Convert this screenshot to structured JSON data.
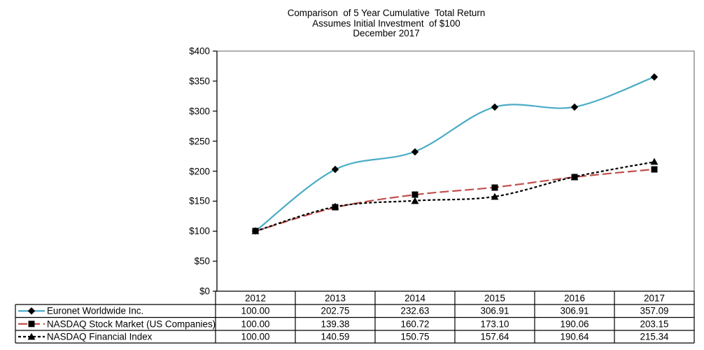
{
  "title": {
    "line1": "Comparison  of 5 Year Cumulative  Total Return",
    "line2": "Assumes Initial Investment  of $100",
    "line3": "December 2017"
  },
  "chart_data": {
    "type": "line",
    "categories": [
      "2012",
      "2013",
      "2014",
      "2015",
      "2016",
      "2017"
    ],
    "series": [
      {
        "name": "Euronet Worldwide Inc.",
        "values": [
          100.0,
          202.75,
          232.63,
          306.91,
          306.91,
          357.09
        ],
        "color": "#4BACC6",
        "dash": "",
        "marker": "diamond"
      },
      {
        "name": "NASDAQ Stock Market (US Companies)",
        "values": [
          100.0,
          139.38,
          160.72,
          173.1,
          190.06,
          203.15
        ],
        "color": "#C0504D",
        "dash": "13 5",
        "marker": "square"
      },
      {
        "name": "NASDAQ Financial Index",
        "values": [
          100.0,
          140.59,
          150.75,
          157.64,
          190.64,
          215.34
        ],
        "color": "#000000",
        "dash": "4 3",
        "marker": "triangle"
      }
    ],
    "marker_color": "#000000",
    "ylim": [
      0,
      400
    ],
    "ytick_step": 50,
    "ytick_labels": [
      "$0",
      "$50",
      "$100",
      "$150",
      "$200",
      "$250",
      "$300",
      "$350",
      "$400"
    ],
    "grid": false,
    "plot_border_color": "#808080",
    "axis_color": "#000000",
    "legend_position": "table-left",
    "line_smoothing": true
  },
  "table": {
    "headers": [
      "2012",
      "2013",
      "2014",
      "2015",
      "2016",
      "2017"
    ],
    "rows": [
      {
        "label": "Euronet Worldwide Inc.",
        "values": [
          "100.00",
          "202.75",
          "232.63",
          "306.91",
          "306.91",
          "357.09"
        ]
      },
      {
        "label": "NASDAQ Stock Market (US Companies)",
        "values": [
          "100.00",
          "139.38",
          "160.72",
          "173.10",
          "190.06",
          "203.15"
        ]
      },
      {
        "label": "NASDAQ Financial Index",
        "values": [
          "100.00",
          "140.59",
          "150.75",
          "157.64",
          "190.64",
          "215.34"
        ]
      }
    ],
    "border_color": "#000000"
  }
}
